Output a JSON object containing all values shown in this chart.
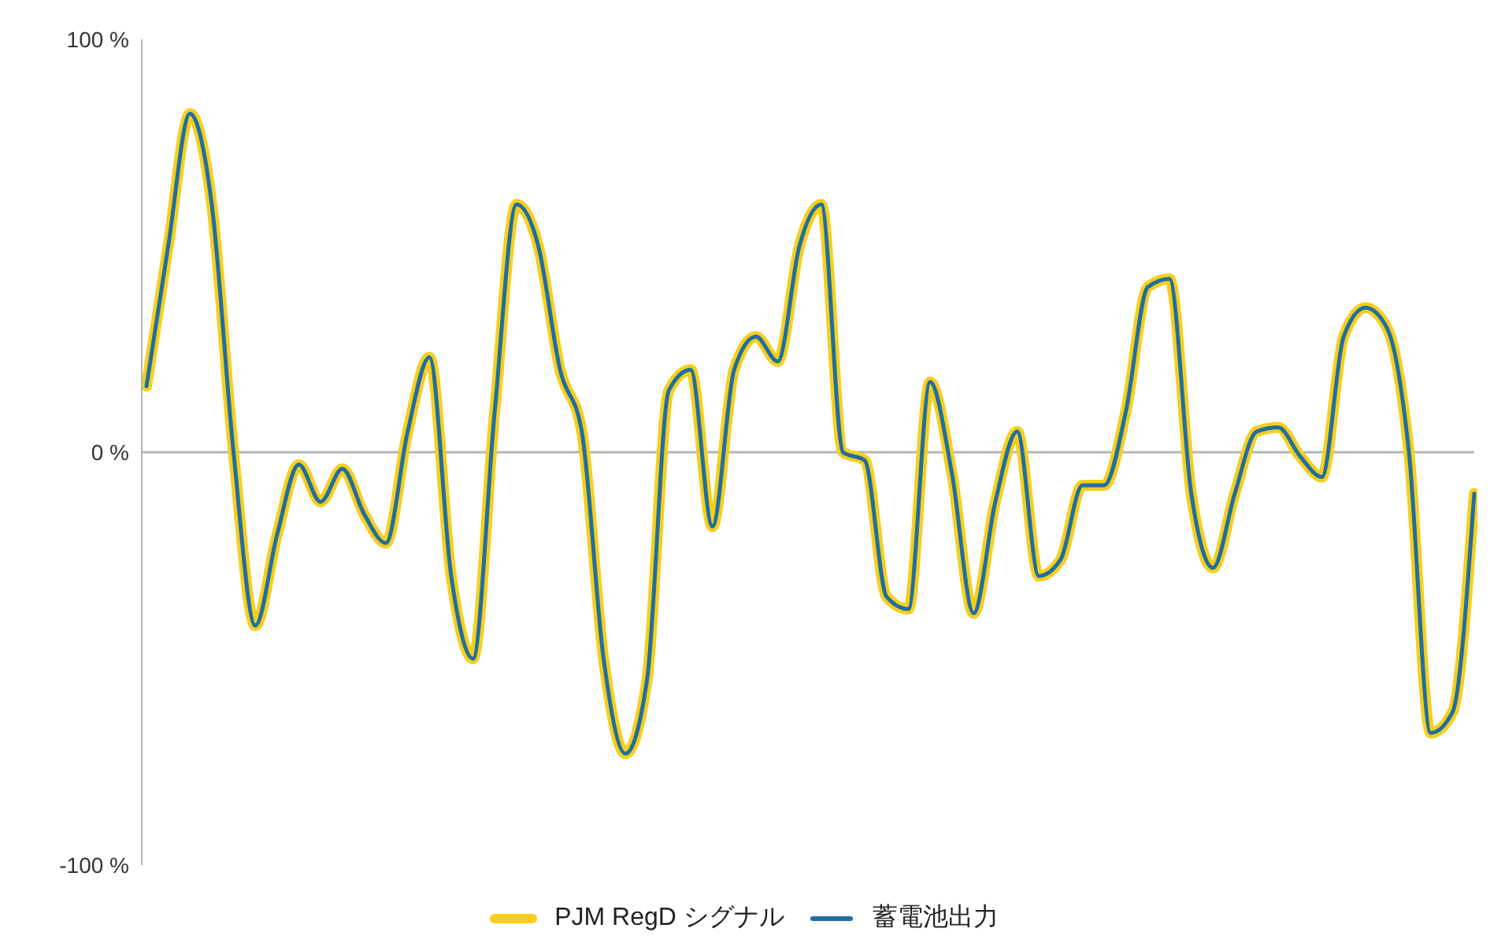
{
  "chart_data": {
    "type": "line",
    "categories": [
      null,
      null,
      null,
      null,
      null,
      null,
      null,
      null,
      null,
      null,
      null,
      null,
      null,
      null,
      null,
      null,
      null,
      null,
      null,
      null,
      null,
      null,
      null,
      null,
      null,
      null,
      null,
      null,
      null,
      null,
      null,
      null,
      null,
      null,
      null,
      null,
      null,
      null,
      null,
      null,
      null,
      null,
      null,
      null,
      null,
      null,
      null,
      null,
      null,
      null,
      null,
      null,
      null,
      null,
      null,
      null,
      null,
      null,
      null,
      null,
      null,
      null
    ],
    "series": [
      {
        "name": "PJM RegD シグナル",
        "color": "#f7ce1e",
        "values": [
          16,
          50,
          82,
          60,
          0,
          -42,
          -20,
          -3,
          -12,
          -4,
          -15,
          -22,
          5,
          23,
          -30,
          -50,
          10,
          60,
          50,
          20,
          5,
          -50,
          -73,
          -55,
          15,
          20,
          -18,
          20,
          28,
          22,
          50,
          60,
          0,
          -2,
          -35,
          -38,
          17,
          -5,
          -39,
          -12,
          5,
          -30,
          -26,
          -8,
          -8,
          10,
          40,
          42,
          -10,
          -28,
          -10,
          5,
          6,
          -1,
          -6,
          28,
          35,
          30,
          0,
          -68,
          -63,
          -10
        ]
      },
      {
        "name": "蓄電池出力",
        "color": "#1f6fa0",
        "values": [
          16,
          50,
          82,
          60,
          0,
          -42,
          -20,
          -3,
          -12,
          -4,
          -15,
          -22,
          5,
          23,
          -30,
          -50,
          10,
          60,
          50,
          20,
          5,
          -50,
          -73,
          -55,
          15,
          20,
          -18,
          20,
          28,
          22,
          50,
          60,
          0,
          -2,
          -35,
          -38,
          17,
          -5,
          -39,
          -12,
          5,
          -30,
          -26,
          -8,
          -8,
          10,
          40,
          42,
          -10,
          -28,
          -10,
          5,
          6,
          -1,
          -6,
          28,
          35,
          30,
          0,
          -68,
          -63,
          -10
        ]
      }
    ],
    "ylim": [
      -100,
      100
    ],
    "yticks": [
      {
        "value": 100,
        "label": "100 %"
      },
      {
        "value": 0,
        "label": "0 %"
      },
      {
        "value": -100,
        "label": "-100 %"
      }
    ],
    "tick_labels": "y",
    "ref_lines": [
      {
        "axis": "y",
        "value": 0,
        "label": null,
        "color": "#b5b5b5"
      }
    ],
    "grid": false,
    "legend": "bottom",
    "marker": "none",
    "line_style": "solid"
  }
}
